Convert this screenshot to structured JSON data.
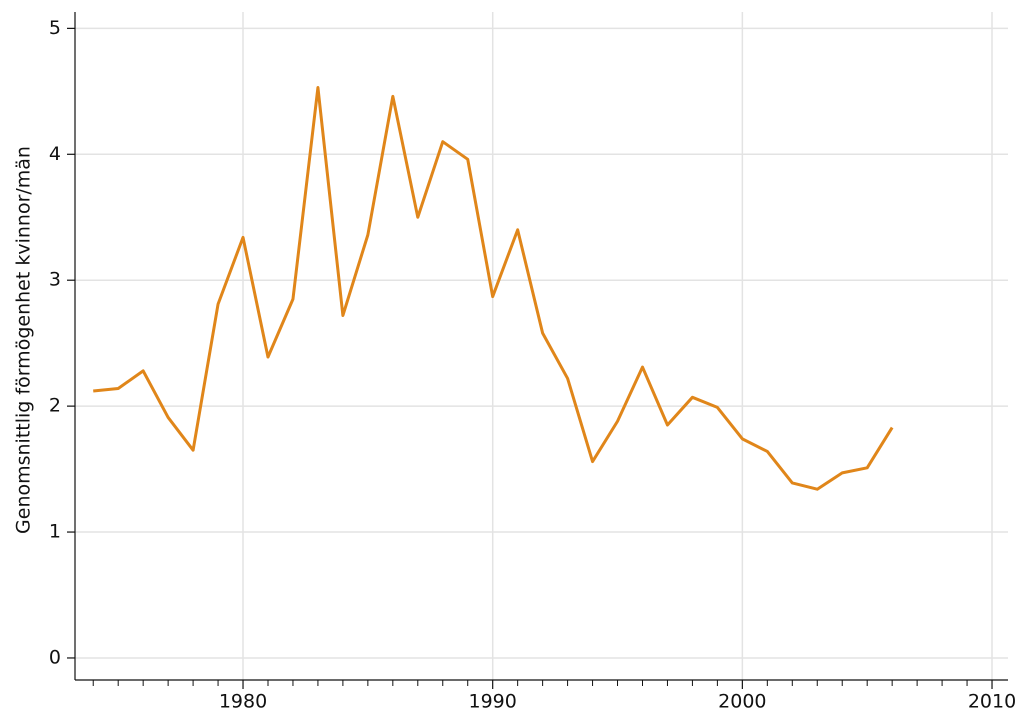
{
  "chart_data": {
    "type": "line",
    "ylabel": "Genomsnittlig förmögenhet kvinnor/män",
    "x": [
      1974,
      1975,
      1976,
      1977,
      1978,
      1979,
      1980,
      1981,
      1982,
      1983,
      1984,
      1985,
      1986,
      1987,
      1988,
      1989,
      1990,
      1991,
      1992,
      1993,
      1994,
      1995,
      1996,
      1997,
      1998,
      1999,
      2000,
      2001,
      2002,
      2003,
      2004,
      2005,
      2006
    ],
    "series": [
      {
        "color": "#e0861a",
        "values": [
          2.12,
          2.14,
          2.28,
          1.91,
          1.65,
          2.81,
          3.34,
          2.39,
          2.85,
          4.53,
          2.72,
          3.36,
          4.46,
          3.5,
          4.1,
          3.96,
          2.87,
          3.4,
          2.58,
          2.22,
          1.56,
          1.88,
          2.31,
          1.85,
          2.07,
          1.99,
          1.74,
          1.64,
          1.39,
          1.34,
          1.47,
          1.51,
          1.83
        ]
      }
    ],
    "xlim": [
      1973.27,
      2010.64
    ],
    "ylim": [
      -0.175,
      5.13
    ],
    "xticks": [
      1980,
      1990,
      2000,
      2010
    ],
    "xminorticks": [
      1974,
      1975,
      1976,
      1977,
      1978,
      1979,
      1981,
      1982,
      1983,
      1984,
      1985,
      1986,
      1987,
      1988,
      1989,
      1991,
      1992,
      1993,
      1994,
      1995,
      1996,
      1997,
      1998,
      1999,
      2001,
      2002,
      2003,
      2004,
      2005,
      2006,
      2007,
      2008,
      2009
    ],
    "yticks": [
      0,
      1,
      2,
      3,
      4,
      5
    ],
    "grid": true
  }
}
